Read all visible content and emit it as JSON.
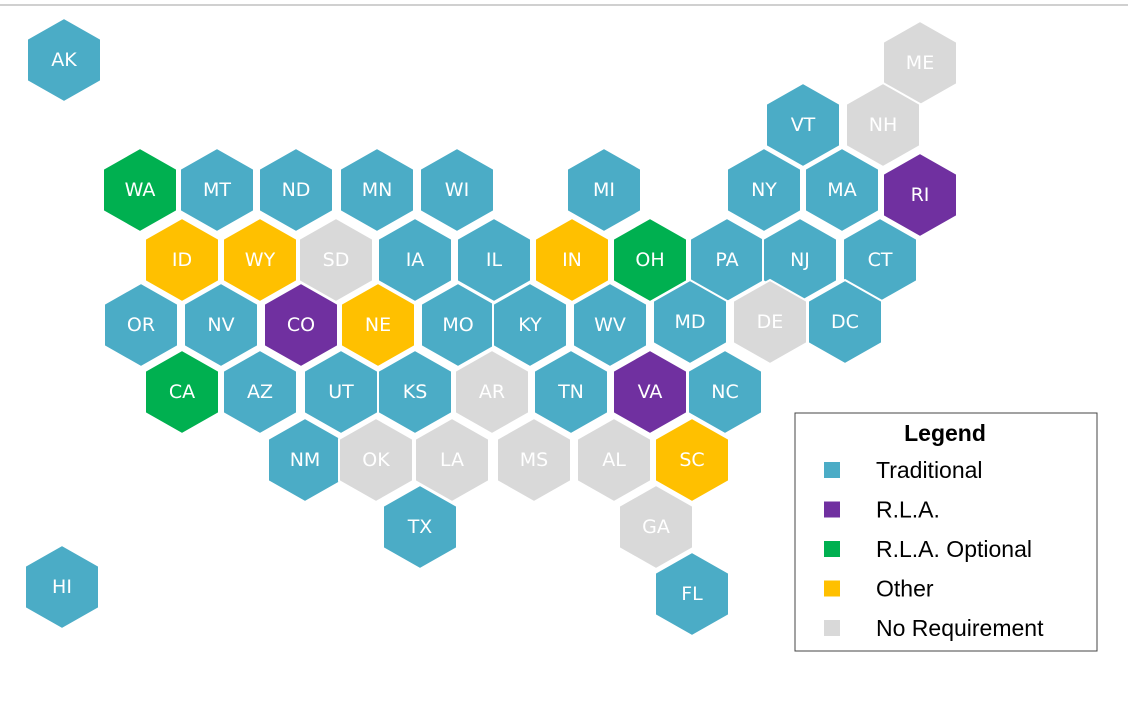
{
  "states": [
    {
      "label": "AK",
      "category": "Traditional"
    },
    {
      "label": "ME",
      "category": "No Requirement"
    },
    {
      "label": "VT",
      "category": "Traditional"
    },
    {
      "label": "NH",
      "category": "No Requirement"
    },
    {
      "label": "WA",
      "category": "R.L.A. Optional"
    },
    {
      "label": "MT",
      "category": "Traditional"
    },
    {
      "label": "ND",
      "category": "Traditional"
    },
    {
      "label": "MN",
      "category": "Traditional"
    },
    {
      "label": "WI",
      "category": "Traditional"
    },
    {
      "label": "MI",
      "category": "Traditional"
    },
    {
      "label": "NY",
      "category": "Traditional"
    },
    {
      "label": "MA",
      "category": "Traditional"
    },
    {
      "label": "RI",
      "category": "R.L.A."
    },
    {
      "label": "ID",
      "category": "Other"
    },
    {
      "label": "WY",
      "category": "Other"
    },
    {
      "label": "SD",
      "category": "No Requirement"
    },
    {
      "label": "IA",
      "category": "Traditional"
    },
    {
      "label": "IL",
      "category": "Traditional"
    },
    {
      "label": "IN",
      "category": "Other"
    },
    {
      "label": "OH",
      "category": "R.L.A. Optional"
    },
    {
      "label": "PA",
      "category": "Traditional"
    },
    {
      "label": "NJ",
      "category": "Traditional"
    },
    {
      "label": "CT",
      "category": "Traditional"
    },
    {
      "label": "OR",
      "category": "Traditional"
    },
    {
      "label": "NV",
      "category": "Traditional"
    },
    {
      "label": "CO",
      "category": "R.L.A."
    },
    {
      "label": "NE",
      "category": "Other"
    },
    {
      "label": "MO",
      "category": "Traditional"
    },
    {
      "label": "KY",
      "category": "Traditional"
    },
    {
      "label": "WV",
      "category": "Traditional"
    },
    {
      "label": "MD",
      "category": "Traditional"
    },
    {
      "label": "DE",
      "category": "No Requirement"
    },
    {
      "label": "DC",
      "category": "Traditional"
    },
    {
      "label": "CA",
      "category": "R.L.A. Optional"
    },
    {
      "label": "AZ",
      "category": "Traditional"
    },
    {
      "label": "UT",
      "category": "Traditional"
    },
    {
      "label": "KS",
      "category": "Traditional"
    },
    {
      "label": "AR",
      "category": "No Requirement"
    },
    {
      "label": "TN",
      "category": "Traditional"
    },
    {
      "label": "VA",
      "category": "R.L.A."
    },
    {
      "label": "NC",
      "category": "Traditional"
    },
    {
      "label": "NM",
      "category": "Traditional"
    },
    {
      "label": "OK",
      "category": "No Requirement"
    },
    {
      "label": "LA",
      "category": "No Requirement"
    },
    {
      "label": "MS",
      "category": "No Requirement"
    },
    {
      "label": "AL",
      "category": "No Requirement"
    },
    {
      "label": "SC",
      "category": "Other"
    },
    {
      "label": "TX",
      "category": "Traditional"
    },
    {
      "label": "GA",
      "category": "No Requirement"
    },
    {
      "label": "HI",
      "category": "Traditional"
    },
    {
      "label": "FL",
      "category": "Traditional"
    }
  ],
  "legend": {
    "title": "Legend",
    "items": [
      {
        "label": "Traditional",
        "color": "#4bacc6"
      },
      {
        "label": "R.L.A.",
        "color": "#7030a0"
      },
      {
        "label": "R.L.A. Optional",
        "color": "#00b050"
      },
      {
        "label": "Other",
        "color": "#ffc000"
      },
      {
        "label": "No Requirement",
        "color": "#d9d9d9"
      }
    ]
  }
}
